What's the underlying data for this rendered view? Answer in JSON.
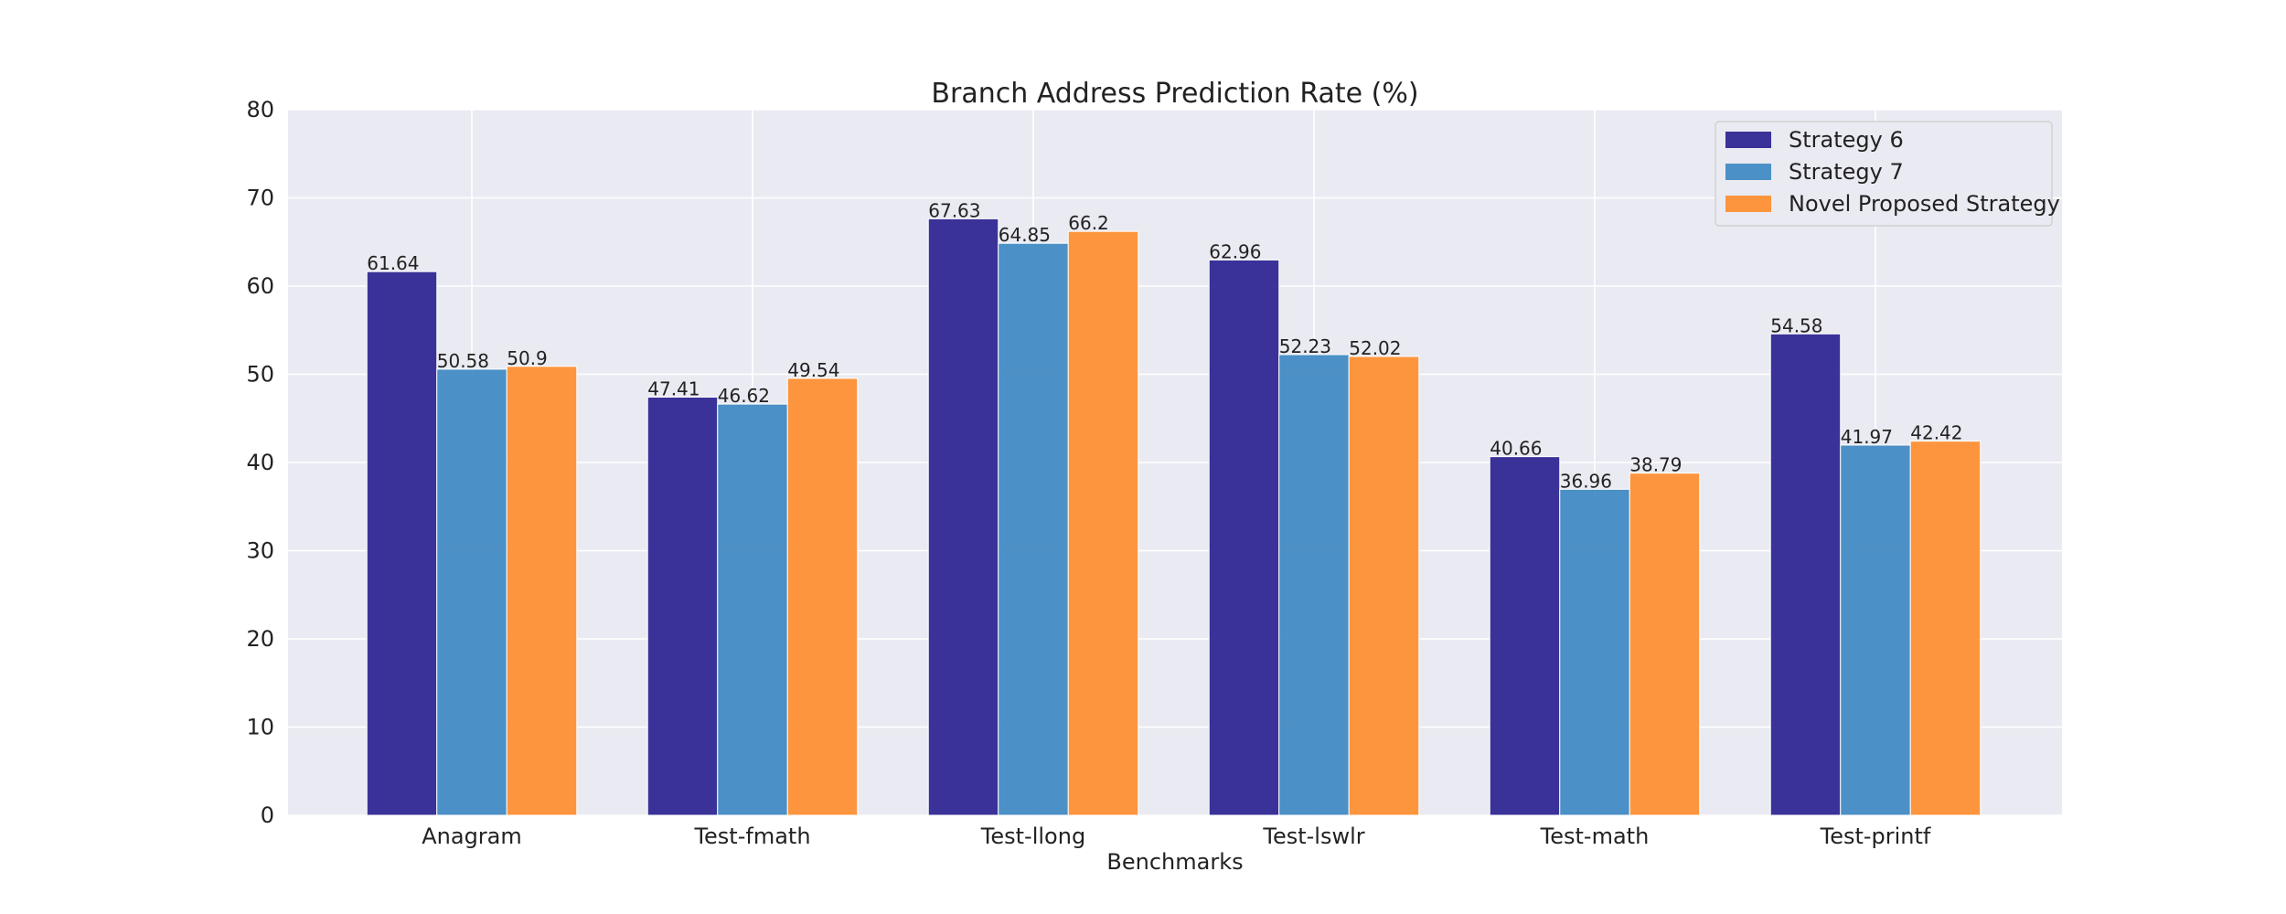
{
  "chart_data": {
    "type": "bar",
    "title": "Branch Address Prediction Rate (%)",
    "xlabel": "Benchmarks",
    "ylabel": "",
    "ylim": [
      0,
      80
    ],
    "yticks": [
      0,
      10,
      20,
      30,
      40,
      50,
      60,
      70,
      80
    ],
    "grid": true,
    "legend_position": "top-right",
    "categories": [
      "Anagram",
      "Test-fmath",
      "Test-llong",
      "Test-lswlr",
      "Test-math",
      "Test-printf"
    ],
    "series": [
      {
        "name": "Strategy 6",
        "color": "#2a2290",
        "values": [
          61.64,
          47.41,
          67.63,
          62.96,
          40.66,
          54.58
        ],
        "labels": [
          "61.64",
          "47.41",
          "67.63",
          "62.96",
          "40.66",
          "54.58"
        ]
      },
      {
        "name": "Strategy 7",
        "color": "#3d88c2",
        "values": [
          50.58,
          46.62,
          64.85,
          52.23,
          36.96,
          41.97
        ],
        "labels": [
          "50.58",
          "46.62",
          "64.85",
          "52.23",
          "36.96",
          "41.97"
        ]
      },
      {
        "name": "Novel Proposed Strategy",
        "color": "#fd8d2f",
        "values": [
          50.9,
          49.54,
          66.2,
          52.02,
          38.79,
          42.42
        ],
        "labels": [
          "50.9",
          "49.54",
          "66.2",
          "52.02",
          "38.79",
          "42.42"
        ]
      }
    ]
  }
}
